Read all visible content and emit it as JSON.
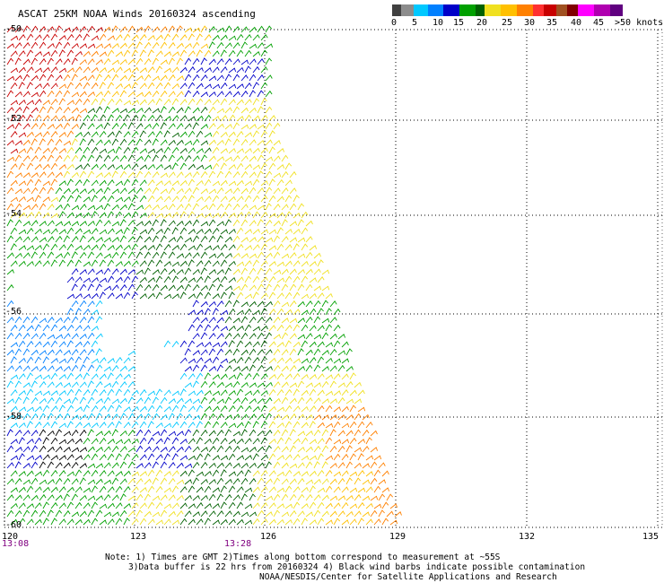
{
  "title": "ASCAT 25KM NOAA Winds 20160324 ascending",
  "colorbar": {
    "colors": [
      "#404040",
      "#8c8c8c",
      "#00c8ff",
      "#0080ff",
      "#0000c8",
      "#00a000",
      "#006000",
      "#f0e020",
      "#ffc000",
      "#ff8000",
      "#ff3030",
      "#c80000",
      "#800000",
      "#a05020",
      "#ff00ff",
      "#b000b0",
      "#600080",
      "#400060"
    ],
    "labels": [
      "0",
      "5",
      "10",
      "15",
      "20",
      "25",
      "30",
      "35",
      "40",
      "45",
      ">50 knots"
    ]
  },
  "lat_labels": [
    "-50",
    "-52",
    "-54",
    "-56",
    "-58",
    "-60"
  ],
  "lon_labels": [
    "120",
    "123",
    "126",
    "129",
    "132",
    "135"
  ],
  "time_labels": [
    "13:08",
    "13:28"
  ],
  "notes": [
    "Note: 1) Times are GMT 2)Times along bottom correspond to measurement at ~55S",
    "3)Data buffer is 22 hrs from 20160324 4) Black wind barbs indicate possible contamination",
    "NOAA/NESDIS/Center for Satellite Applications and Research"
  ]
}
